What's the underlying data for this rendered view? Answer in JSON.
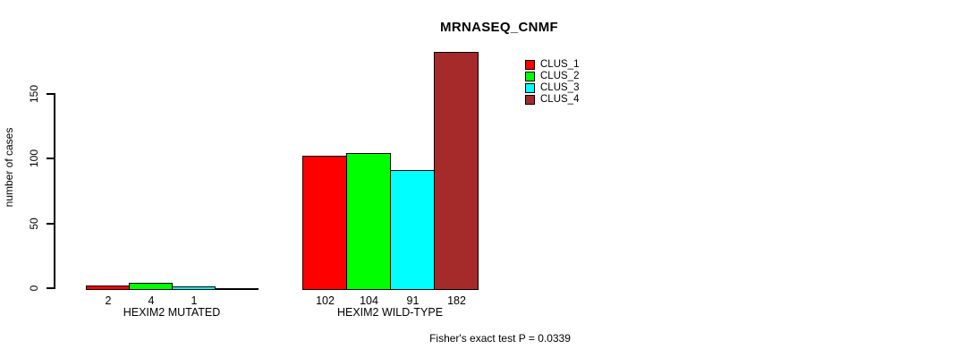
{
  "chart_data": {
    "type": "bar",
    "title": "MRNASEQ_CNMF",
    "ylabel": "number of cases",
    "xlabel": "",
    "yticks": [
      0,
      50,
      100,
      150
    ],
    "ylim": [
      0,
      185
    ],
    "grid": false,
    "legend_position": "top-right-inside",
    "annotation": "Fisher's exact test P = 0.0339",
    "categories": [
      "HEXIM2 MUTATED",
      "HEXIM2 WILD-TYPE"
    ],
    "series": [
      {
        "name": "CLUS_1",
        "color": "#ff0000",
        "values": [
          2,
          102
        ]
      },
      {
        "name": "CLUS_2",
        "color": "#00ff00",
        "values": [
          4,
          104
        ]
      },
      {
        "name": "CLUS_3",
        "color": "#00ffff",
        "values": [
          1,
          91
        ]
      },
      {
        "name": "CLUS_4",
        "color": "#a52a2a",
        "values": [
          0,
          182
        ]
      }
    ],
    "value_labels": [
      [
        "2",
        "4",
        "1",
        ""
      ],
      [
        "102",
        "104",
        "91",
        "182"
      ]
    ],
    "colors": {
      "background": "#ffffff",
      "axis": "#000000",
      "text": "#000000",
      "bar_border": "#000000"
    }
  }
}
